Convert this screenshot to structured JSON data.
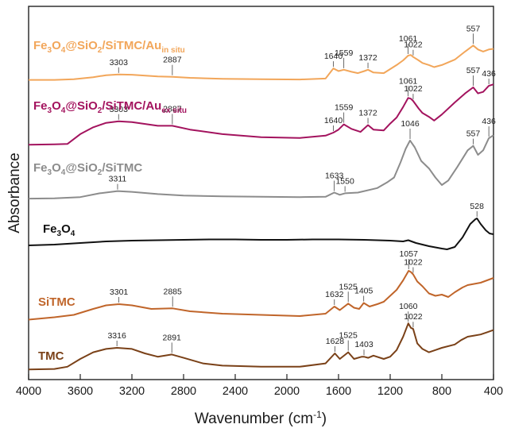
{
  "chart_data": {
    "type": "line",
    "xlabel": "Wavenumber (cm",
    "xlabel_sup": "-1",
    "xlabel_end": ")",
    "ylabel": "Absorbance",
    "xlim": [
      4000,
      400
    ],
    "x_reversed": true,
    "grid": false,
    "x_ticks": [
      4000,
      3600,
      3200,
      2800,
      2400,
      2000,
      1600,
      1200,
      800,
      400
    ],
    "series": [
      {
        "label_parts": [
          "Fe",
          "3",
          "O",
          "4",
          "@SiO",
          "2",
          "/SiTMC/Au",
          "in situ"
        ],
        "color": "#f2a65a",
        "points": [
          [
            4000,
            0.2
          ],
          [
            3800,
            0.2
          ],
          [
            3650,
            0.25
          ],
          [
            3500,
            0.4
          ],
          [
            3400,
            0.55
          ],
          [
            3303,
            0.6
          ],
          [
            3200,
            0.58
          ],
          [
            3000,
            0.45
          ],
          [
            2887,
            0.43
          ],
          [
            2750,
            0.35
          ],
          [
            2500,
            0.28
          ],
          [
            2200,
            0.25
          ],
          [
            1900,
            0.23
          ],
          [
            1700,
            0.3
          ],
          [
            1640,
            1.05
          ],
          [
            1600,
            0.85
          ],
          [
            1559,
            0.95
          ],
          [
            1500,
            0.8
          ],
          [
            1450,
            0.7
          ],
          [
            1400,
            0.85
          ],
          [
            1372,
            0.95
          ],
          [
            1330,
            0.75
          ],
          [
            1250,
            0.7
          ],
          [
            1200,
            1.0
          ],
          [
            1150,
            1.3
          ],
          [
            1100,
            1.65
          ],
          [
            1061,
            2.0
          ],
          [
            1040,
            2.05
          ],
          [
            1022,
            1.9
          ],
          [
            980,
            1.65
          ],
          [
            950,
            1.45
          ],
          [
            900,
            1.3
          ],
          [
            860,
            1.15
          ],
          [
            800,
            1.3
          ],
          [
            700,
            1.7
          ],
          [
            620,
            2.3
          ],
          [
            557,
            2.75
          ],
          [
            520,
            2.45
          ],
          [
            480,
            2.3
          ],
          [
            436,
            2.45
          ],
          [
            400,
            2.5
          ]
        ],
        "peaks": [
          {
            "wn": 3303,
            "text": "3303"
          },
          {
            "wn": 2887,
            "text": "2887"
          },
          {
            "wn": 1640,
            "text": "1640"
          },
          {
            "wn": 1559,
            "text": "1559"
          },
          {
            "wn": 1372,
            "text": "1372"
          },
          {
            "wn": 1061,
            "text": "1061"
          },
          {
            "wn": 1022,
            "text": "1022"
          },
          {
            "wn": 557,
            "text": "557"
          }
        ]
      },
      {
        "label_parts": [
          "Fe",
          "3",
          "O",
          "4",
          "@SiO",
          "2",
          "/SiTMC/Au",
          "ex situ"
        ],
        "color": "#a3135e",
        "points": [
          [
            4000,
            0.2
          ],
          [
            3800,
            0.22
          ],
          [
            3700,
            0.25
          ],
          [
            3600,
            0.9
          ],
          [
            3500,
            1.35
          ],
          [
            3400,
            1.65
          ],
          [
            3303,
            1.75
          ],
          [
            3200,
            1.7
          ],
          [
            3000,
            1.45
          ],
          [
            2887,
            1.45
          ],
          [
            2750,
            1.2
          ],
          [
            2500,
            0.9
          ],
          [
            2200,
            0.7
          ],
          [
            1900,
            0.65
          ],
          [
            1700,
            0.8
          ],
          [
            1640,
            1.0
          ],
          [
            1600,
            1.2
          ],
          [
            1559,
            1.55
          ],
          [
            1500,
            1.25
          ],
          [
            1430,
            1.05
          ],
          [
            1372,
            1.5
          ],
          [
            1330,
            1.2
          ],
          [
            1250,
            1.15
          ],
          [
            1200,
            1.6
          ],
          [
            1150,
            2.0
          ],
          [
            1100,
            2.7
          ],
          [
            1061,
            3.3
          ],
          [
            1040,
            3.25
          ],
          [
            1022,
            3.1
          ],
          [
            980,
            2.6
          ],
          [
            950,
            2.3
          ],
          [
            900,
            2.05
          ],
          [
            860,
            1.8
          ],
          [
            800,
            2.2
          ],
          [
            700,
            3.0
          ],
          [
            620,
            3.6
          ],
          [
            557,
            4.0
          ],
          [
            520,
            3.6
          ],
          [
            480,
            3.7
          ],
          [
            436,
            4.1
          ],
          [
            400,
            4.2
          ]
        ],
        "peaks": [
          {
            "wn": 3303,
            "text": "3303"
          },
          {
            "wn": 2887,
            "text": "2887"
          },
          {
            "wn": 1640,
            "text": "1640"
          },
          {
            "wn": 1559,
            "text": "1559"
          },
          {
            "wn": 1372,
            "text": "1372"
          },
          {
            "wn": 1061,
            "text": "1061"
          },
          {
            "wn": 1022,
            "text": "1022"
          },
          {
            "wn": 557,
            "text": "557"
          },
          {
            "wn": 436,
            "text": "436"
          }
        ]
      },
      {
        "label_parts": [
          "Fe",
          "3",
          "O",
          "4",
          "@SiO",
          "2",
          "/SiTMC"
        ],
        "color": "#8c8c8c",
        "points": [
          [
            4000,
            0.1
          ],
          [
            3800,
            0.12
          ],
          [
            3600,
            0.2
          ],
          [
            3450,
            0.45
          ],
          [
            3311,
            0.6
          ],
          [
            3200,
            0.55
          ],
          [
            3000,
            0.4
          ],
          [
            2800,
            0.3
          ],
          [
            2500,
            0.25
          ],
          [
            2200,
            0.22
          ],
          [
            1900,
            0.2
          ],
          [
            1700,
            0.22
          ],
          [
            1633,
            0.5
          ],
          [
            1590,
            0.35
          ],
          [
            1550,
            0.45
          ],
          [
            1450,
            0.5
          ],
          [
            1300,
            0.8
          ],
          [
            1220,
            1.2
          ],
          [
            1170,
            1.5
          ],
          [
            1120,
            2.5
          ],
          [
            1080,
            3.4
          ],
          [
            1046,
            3.95
          ],
          [
            1010,
            3.5
          ],
          [
            960,
            2.6
          ],
          [
            900,
            2.1
          ],
          [
            850,
            1.5
          ],
          [
            800,
            1.0
          ],
          [
            750,
            1.3
          ],
          [
            680,
            2.2
          ],
          [
            600,
            3.3
          ],
          [
            557,
            3.6
          ],
          [
            520,
            3.0
          ],
          [
            480,
            3.3
          ],
          [
            436,
            4.1
          ],
          [
            400,
            4.3
          ]
        ],
        "peaks": [
          {
            "wn": 3311,
            "text": "3311"
          },
          {
            "wn": 1633,
            "text": "1633"
          },
          {
            "wn": 1550,
            "text": "1550"
          },
          {
            "wn": 1046,
            "text": "1046"
          },
          {
            "wn": 557,
            "text": "557"
          },
          {
            "wn": 436,
            "text": "436"
          }
        ]
      },
      {
        "label_parts": [
          "Fe",
          "3",
          "O",
          "4"
        ],
        "color": "#111111",
        "points": [
          [
            4000,
            0.5
          ],
          [
            3800,
            0.6
          ],
          [
            3600,
            0.8
          ],
          [
            3400,
            1.0
          ],
          [
            3200,
            1.1
          ],
          [
            3000,
            1.15
          ],
          [
            2800,
            1.2
          ],
          [
            2600,
            1.25
          ],
          [
            2400,
            1.25
          ],
          [
            2200,
            1.2
          ],
          [
            2000,
            1.2
          ],
          [
            1800,
            1.25
          ],
          [
            1600,
            1.25
          ],
          [
            1400,
            1.2
          ],
          [
            1200,
            1.1
          ],
          [
            1100,
            1.0
          ],
          [
            1060,
            1.15
          ],
          [
            1000,
            0.8
          ],
          [
            900,
            0.4
          ],
          [
            800,
            0.1
          ],
          [
            760,
            0.0
          ],
          [
            700,
            0.3
          ],
          [
            640,
            1.5
          ],
          [
            580,
            3.2
          ],
          [
            540,
            3.8
          ],
          [
            528,
            3.9
          ],
          [
            500,
            3.2
          ],
          [
            460,
            2.4
          ],
          [
            430,
            2.0
          ],
          [
            400,
            1.9
          ]
        ],
        "peaks": [
          {
            "wn": 528,
            "text": "528"
          }
        ]
      },
      {
        "label_parts": [
          "SiTMC"
        ],
        "color": "#c0652a",
        "points": [
          [
            4000,
            0.1
          ],
          [
            3800,
            0.3
          ],
          [
            3650,
            0.5
          ],
          [
            3500,
            1.0
          ],
          [
            3400,
            1.3
          ],
          [
            3301,
            1.4
          ],
          [
            3200,
            1.3
          ],
          [
            3050,
            1.0
          ],
          [
            2885,
            1.05
          ],
          [
            2750,
            0.8
          ],
          [
            2500,
            0.6
          ],
          [
            2200,
            0.5
          ],
          [
            1900,
            0.4
          ],
          [
            1700,
            0.6
          ],
          [
            1632,
            1.2
          ],
          [
            1590,
            0.9
          ],
          [
            1525,
            1.45
          ],
          [
            1480,
            1.1
          ],
          [
            1440,
            1.0
          ],
          [
            1405,
            1.5
          ],
          [
            1360,
            1.2
          ],
          [
            1300,
            1.4
          ],
          [
            1250,
            1.6
          ],
          [
            1200,
            2.1
          ],
          [
            1150,
            2.6
          ],
          [
            1100,
            3.4
          ],
          [
            1057,
            4.2
          ],
          [
            1040,
            4.1
          ],
          [
            1022,
            3.9
          ],
          [
            990,
            3.3
          ],
          [
            950,
            2.9
          ],
          [
            900,
            2.3
          ],
          [
            850,
            2.1
          ],
          [
            800,
            2.2
          ],
          [
            750,
            2.0
          ],
          [
            700,
            2.4
          ],
          [
            640,
            2.8
          ],
          [
            600,
            3.0
          ],
          [
            550,
            3.1
          ],
          [
            500,
            3.2
          ],
          [
            450,
            3.4
          ],
          [
            400,
            3.6
          ]
        ],
        "peaks": [
          {
            "wn": 3301,
            "text": "3301"
          },
          {
            "wn": 2885,
            "text": "2885"
          },
          {
            "wn": 1632,
            "text": "1632"
          },
          {
            "wn": 1525,
            "text": "1525"
          },
          {
            "wn": 1405,
            "text": "1405"
          },
          {
            "wn": 1057,
            "text": "1057"
          },
          {
            "wn": 1022,
            "text": "1022"
          }
        ]
      },
      {
        "label_parts": [
          "TMC"
        ],
        "color": "#7a4118",
        "points": [
          [
            4000,
            0.05
          ],
          [
            3800,
            0.1
          ],
          [
            3700,
            0.3
          ],
          [
            3600,
            1.0
          ],
          [
            3500,
            1.6
          ],
          [
            3400,
            1.9
          ],
          [
            3316,
            2.0
          ],
          [
            3200,
            1.9
          ],
          [
            3100,
            1.5
          ],
          [
            3000,
            1.2
          ],
          [
            2891,
            1.4
          ],
          [
            2800,
            1.1
          ],
          [
            2650,
            0.6
          ],
          [
            2500,
            0.4
          ],
          [
            2200,
            0.3
          ],
          [
            1900,
            0.3
          ],
          [
            1700,
            0.6
          ],
          [
            1628,
            1.5
          ],
          [
            1590,
            1.0
          ],
          [
            1525,
            1.6
          ],
          [
            1480,
            1.0
          ],
          [
            1420,
            1.2
          ],
          [
            1403,
            1.2
          ],
          [
            1370,
            1.1
          ],
          [
            1330,
            1.3
          ],
          [
            1250,
            1.0
          ],
          [
            1200,
            1.2
          ],
          [
            1150,
            1.8
          ],
          [
            1100,
            3.0
          ],
          [
            1060,
            4.2
          ],
          [
            1040,
            3.8
          ],
          [
            1022,
            3.7
          ],
          [
            990,
            2.4
          ],
          [
            950,
            1.9
          ],
          [
            900,
            1.6
          ],
          [
            850,
            1.8
          ],
          [
            800,
            2.0
          ],
          [
            700,
            2.3
          ],
          [
            650,
            2.7
          ],
          [
            600,
            3.0
          ],
          [
            550,
            3.1
          ],
          [
            500,
            3.2
          ],
          [
            450,
            3.4
          ],
          [
            400,
            3.6
          ]
        ],
        "peaks": [
          {
            "wn": 3316,
            "text": "3316"
          },
          {
            "wn": 2891,
            "text": "2891"
          },
          {
            "wn": 1628,
            "text": "1628"
          },
          {
            "wn": 1525,
            "text": "1525"
          },
          {
            "wn": 1403,
            "text": "1403"
          },
          {
            "wn": 1060,
            "text": "1060"
          },
          {
            "wn": 1022,
            "text": "1022"
          }
        ]
      }
    ]
  }
}
